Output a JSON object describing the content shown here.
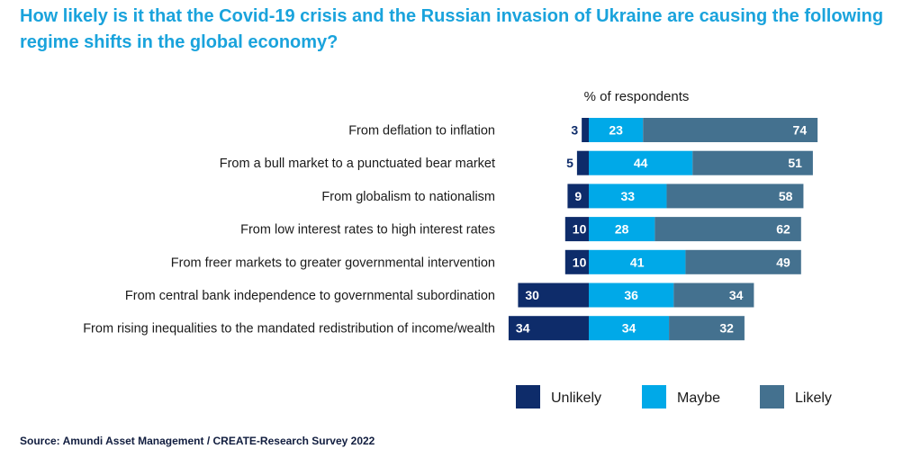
{
  "chart_data": {
    "type": "bar",
    "orientation": "horizontal",
    "stacked": true,
    "title": "How likely is it that the Covid-19 crisis and the Russian invasion of Ukraine are causing the following regime shifts in the global economy?",
    "unit_label": "% of respondents",
    "categories": [
      "From deflation to inflation",
      "From a bull market to a punctuated bear market",
      "From globalism to nationalism",
      "From low interest rates to high interest rates",
      "From freer markets to greater governmental intervention",
      "From central bank independence to governmental subordination",
      "From rising inequalities to the mandated redistribution of income/wealth"
    ],
    "series": [
      {
        "name": "Unlikely",
        "color": "#0e2c6a",
        "values": [
          3,
          5,
          9,
          10,
          10,
          30,
          34
        ]
      },
      {
        "name": "Maybe",
        "color": "#00a9e8",
        "values": [
          23,
          44,
          33,
          28,
          41,
          36,
          34
        ]
      },
      {
        "name": "Likely",
        "color": "#44718f",
        "values": [
          74,
          51,
          58,
          62,
          49,
          34,
          32
        ]
      }
    ],
    "legend_position": "bottom-right",
    "grid": false
  },
  "source": "Source: Amundi Asset Management / CREATE-Research Survey 2022"
}
